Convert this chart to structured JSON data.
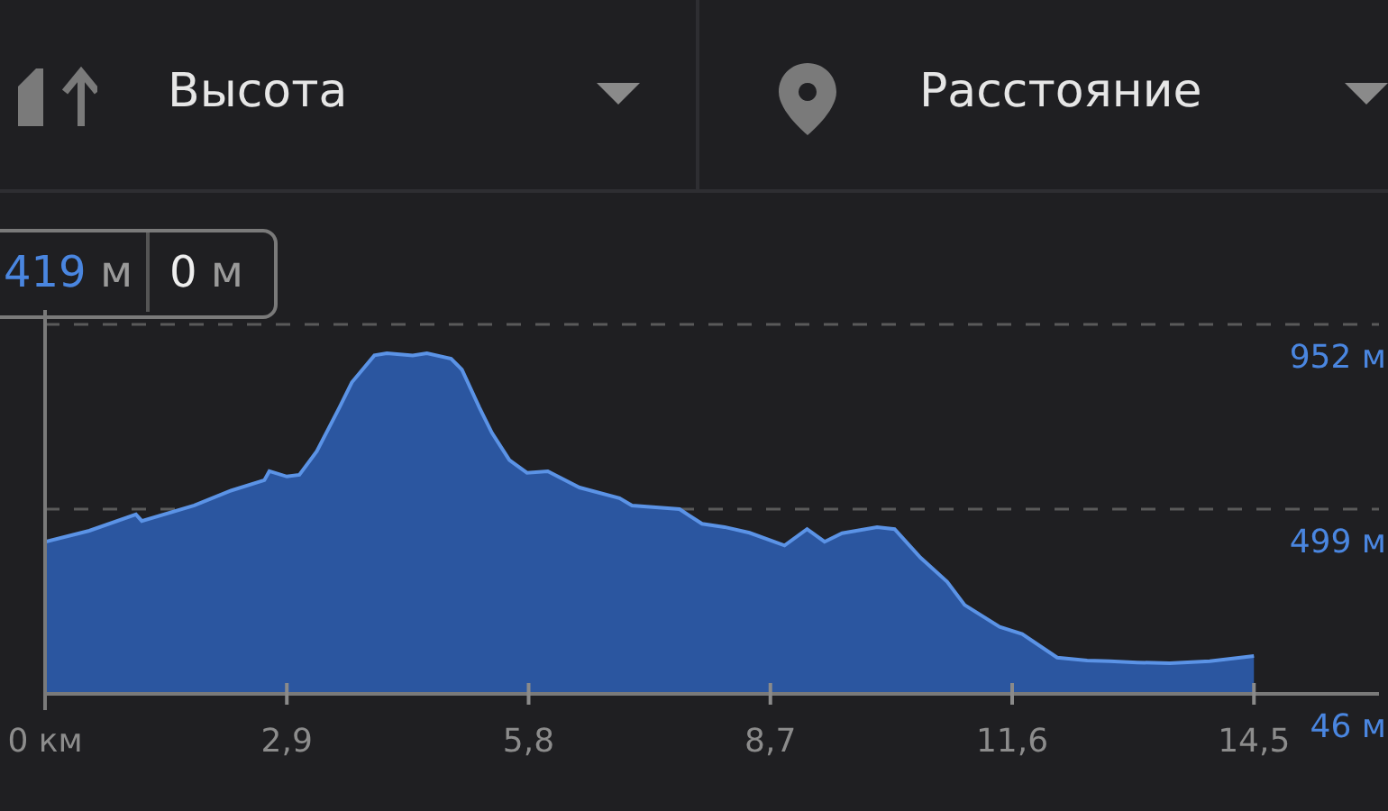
{
  "chart_data": {
    "type": "area",
    "xlabel": "Расстояние",
    "ylabel": "Высота",
    "annotations": [
      "419 м",
      "0 м"
    ],
    "x": [
      0,
      0.53,
      1.09,
      1.16,
      1.79,
      2.21,
      2.63,
      2.69,
      2.9,
      3.05,
      3.26,
      3.53,
      3.68,
      3.95,
      4.1,
      4.41,
      4.58,
      4.87,
      5.0,
      5.21,
      5.36,
      5.57,
      5.78,
      6.03,
      6.41,
      6.89,
      7.04,
      7.61,
      7.88,
      8.15,
      8.45,
      8.87,
      9.14,
      9.35,
      9.56,
      9.98,
      10.19,
      10.5,
      10.82,
      11.03,
      11.45,
      11.72,
      12.14,
      12.5,
      12.77,
      13.1,
      13.49,
      13.97,
      14.5
    ],
    "series": [
      {
        "color": "#2b56a0",
        "values": [
          419,
          446,
          486,
          470,
          508,
          543,
          570,
          592,
          579,
          583,
          641,
          748,
          810,
          876,
          881,
          876,
          881,
          868,
          841,
          748,
          686,
          619,
          588,
          592,
          552,
          526,
          508,
          499,
          463,
          455,
          441,
          410,
          450,
          419,
          440,
          455,
          450,
          380,
          321,
          264,
          210,
          193,
          135,
          128,
          126,
          123,
          121,
          126,
          139
        ]
      }
    ],
    "xlim": [
      0,
      16
    ],
    "xticks": [
      {
        "value": 0,
        "label": "0 км"
      },
      {
        "value": 2.9,
        "label": "2,9"
      },
      {
        "value": 5.8,
        "label": "5,8"
      },
      {
        "value": 8.7,
        "label": "8,7"
      },
      {
        "value": 11.6,
        "label": "11,6"
      },
      {
        "value": 14.5,
        "label": "14,5"
      }
    ],
    "ylim": [
      46,
      952
    ],
    "yticks": [
      {
        "value": 46,
        "label": "46 м"
      },
      {
        "value": 499,
        "label": "499 м"
      },
      {
        "value": 952,
        "label": "952 м"
      }
    ],
    "grid": "y",
    "legend": false
  }
}
